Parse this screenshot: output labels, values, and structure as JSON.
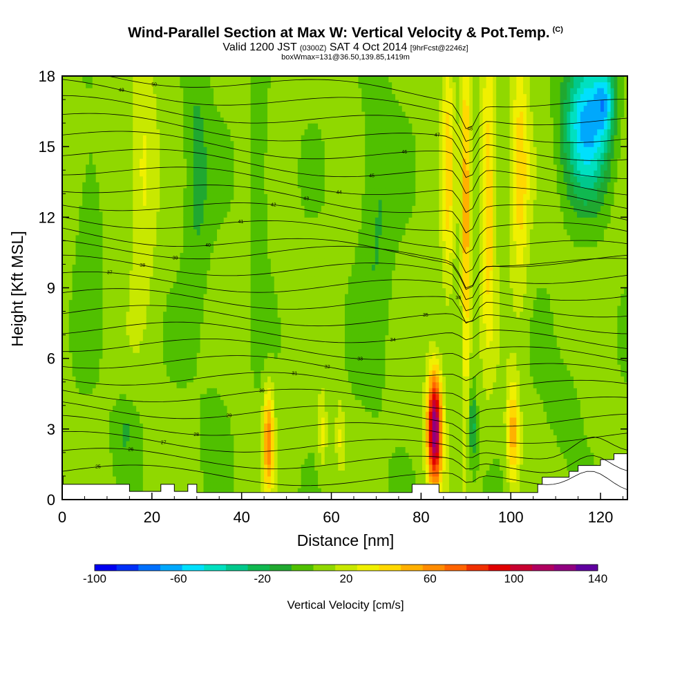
{
  "header": {
    "title": "Wind-Parallel Section at Max W: Vertical Velocity & Pot.Temp.",
    "copyright": "(C)",
    "valid_prefix": "Valid 1200 JST",
    "valid_z": "(0300Z)",
    "valid_date": "SAT 4 Oct 2014",
    "forecast": "[9hrFcst@2246z]",
    "boxinfo": "boxWmax=131@36.50,139.85,1419m"
  },
  "chart_data": {
    "type": "heatmap",
    "title": "Wind-Parallel Section at Max W: Vertical Velocity & Pot.Temp.",
    "xlabel": "Distance [nm]",
    "ylabel": "Height [Kft MSL]",
    "xlim": [
      0,
      126
    ],
    "ylim": [
      0,
      18
    ],
    "xticks": [
      0,
      20,
      40,
      60,
      80,
      100,
      120
    ],
    "yticks": [
      0,
      3,
      6,
      9,
      12,
      15,
      18
    ],
    "colorbar": {
      "label": "Vertical Velocity [cm/s]",
      "range": [
        -100,
        140
      ],
      "tick_values": [
        -100,
        -60,
        -20,
        20,
        60,
        100,
        140
      ],
      "colors": [
        "#0000f0",
        "#0030f8",
        "#0070fc",
        "#00a8fc",
        "#00e0fc",
        "#00e0c0",
        "#00c88c",
        "#10b850",
        "#20a830",
        "#50c000",
        "#90d800",
        "#c8e800",
        "#f0f000",
        "#ffd800",
        "#ffb000",
        "#ff8c00",
        "#ff6400",
        "#f03000",
        "#e00000",
        "#c80030",
        "#b00060",
        "#900080",
        "#6000a0"
      ]
    },
    "features": [
      {
        "name": "updraft max",
        "x": 83,
        "y_range": [
          0.5,
          5.5
        ],
        "w": 131
      },
      {
        "name": "updraft",
        "x": 46,
        "y_range": [
          0.5,
          5
        ],
        "w": 60
      },
      {
        "name": "updraft",
        "x": 100,
        "y_range": [
          0.5,
          5
        ],
        "w": 55
      },
      {
        "name": "downdraft",
        "x": 117,
        "y_range": [
          12,
          18
        ],
        "w": -60
      }
    ],
    "contour_labels": [
      "50",
      "49",
      "48",
      "47",
      "46",
      "45",
      "44",
      "43",
      "42",
      "41",
      "40",
      "39",
      "38",
      "37",
      "36",
      "35",
      "34",
      "33",
      "32",
      "31",
      "30",
      "29",
      "28",
      "27",
      "26",
      "25"
    ],
    "grid": false
  }
}
